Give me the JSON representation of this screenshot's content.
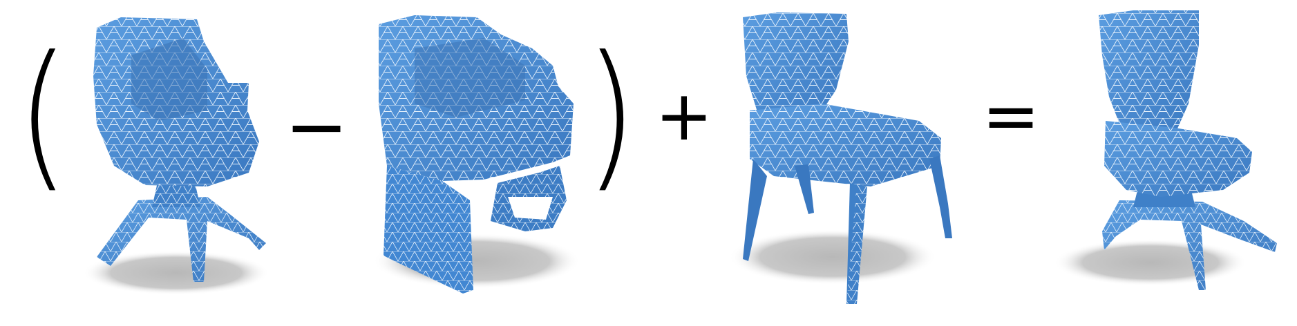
{
  "equation": {
    "open_paren": "(",
    "minus": "−",
    "close_paren": ")",
    "plus": "+",
    "equals": "="
  },
  "colors": {
    "mesh_fill": "#4a8fd8",
    "mesh_dark": "#3a78c0",
    "mesh_edge": "#e8f2fc",
    "shadow": "#c4c4c4",
    "operator": "#000000"
  },
  "shapes": [
    {
      "name": "pedestal-armchair-mesh",
      "description_icon": "chair-icon"
    },
    {
      "name": "rocking-armchair-mesh",
      "description_icon": "chair-icon"
    },
    {
      "name": "four-leg-chair-mesh",
      "description_icon": "chair-icon"
    },
    {
      "name": "result-pedestal-chair-mesh",
      "description_icon": "chair-icon"
    }
  ]
}
